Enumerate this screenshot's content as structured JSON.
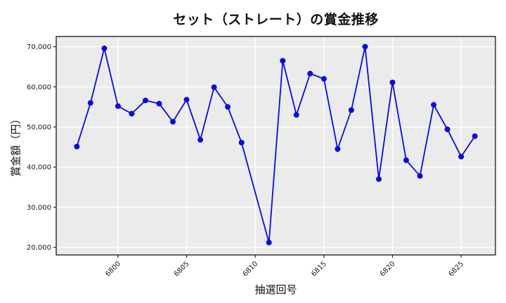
{
  "chart_data": {
    "type": "line",
    "title": "セット（ストレート）の賞金推移",
    "xlabel": "抽選回号",
    "ylabel": "賞金額（円）",
    "x": [
      6797,
      6798,
      6799,
      6800,
      6801,
      6802,
      6803,
      6804,
      6805,
      6806,
      6807,
      6808,
      6809,
      6811,
      6812,
      6813,
      6814,
      6815,
      6816,
      6817,
      6818,
      6819,
      6820,
      6821,
      6822,
      6823,
      6824,
      6825,
      6826
    ],
    "y": [
      45100,
      56000,
      69600,
      55200,
      53300,
      56600,
      55800,
      51300,
      56800,
      46800,
      59900,
      55000,
      46100,
      21200,
      66500,
      53000,
      63300,
      62000,
      44500,
      54200,
      70000,
      37000,
      61100,
      41700,
      37800,
      55500,
      49400,
      42600,
      47700
    ],
    "xticks": [
      6800,
      6805,
      6810,
      6815,
      6820,
      6825
    ],
    "yticks": [
      20000,
      30000,
      40000,
      50000,
      60000,
      70000
    ],
    "xlim": [
      6795.5,
      6827.5
    ],
    "ylim": [
      18100,
      72550
    ],
    "grid": true,
    "legend": "none",
    "line_color": "#0b0bdc",
    "marker": "o",
    "marker_color": "#0b0bdc",
    "plot_bg": "#ebebeb",
    "grid_color": "#ffffff",
    "spine_color": "#262626",
    "tick_color": "#1a1a1a",
    "fig_bg": "#ffffff"
  }
}
